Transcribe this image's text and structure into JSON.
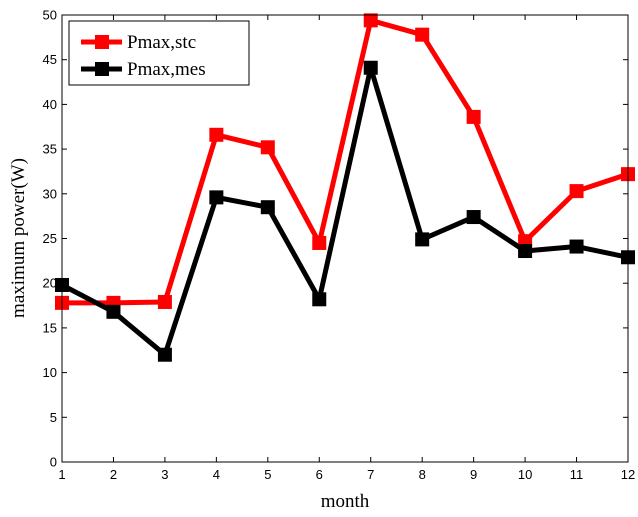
{
  "chart_data": {
    "type": "line",
    "title": "",
    "xlabel": "month",
    "ylabel": "maximum power(W)",
    "x": [
      1,
      2,
      3,
      4,
      5,
      6,
      7,
      8,
      9,
      10,
      11,
      12
    ],
    "xlim": [
      1,
      12
    ],
    "ylim": [
      0,
      50
    ],
    "xticks": [
      "1",
      "2",
      "3",
      "4",
      "5",
      "6",
      "7",
      "8",
      "9",
      "10",
      "11",
      "12"
    ],
    "yticks": [
      "0",
      "5",
      "10",
      "15",
      "20",
      "25",
      "30",
      "35",
      "40",
      "45",
      "50"
    ],
    "grid": false,
    "legend_position": "top-left",
    "series": [
      {
        "name": "Pmax,stc",
        "color": "#ff0000",
        "marker": "square",
        "values": [
          17.8,
          17.8,
          17.9,
          36.6,
          35.2,
          24.5,
          49.4,
          47.8,
          38.6,
          24.7,
          30.3,
          32.2
        ]
      },
      {
        "name": "Pmax,mes",
        "color": "#000000",
        "marker": "square",
        "values": [
          19.8,
          16.8,
          12.0,
          29.6,
          28.5,
          18.2,
          44.1,
          24.9,
          27.4,
          23.6,
          24.1,
          22.9
        ]
      }
    ]
  }
}
